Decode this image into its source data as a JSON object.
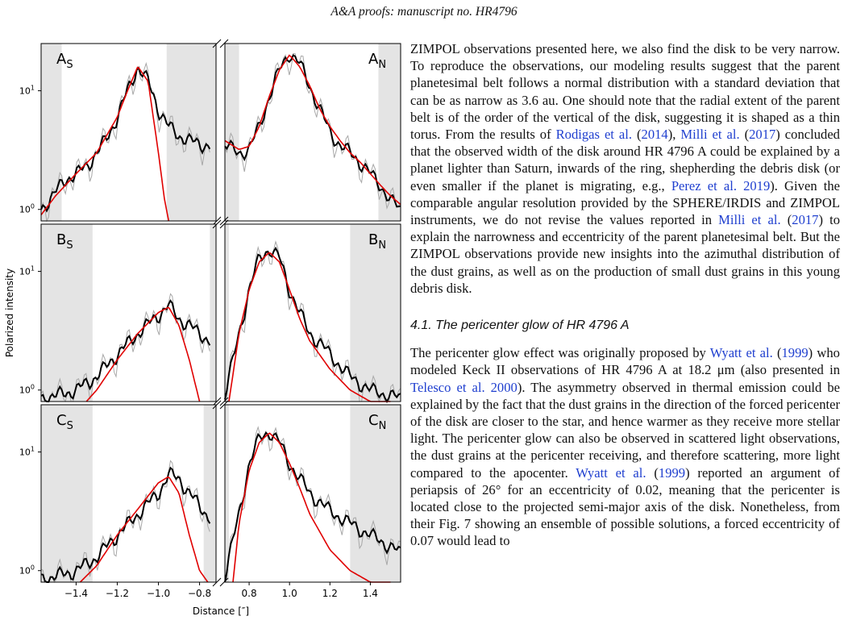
{
  "header": {
    "text": "A&A proofs: manuscript no. HR4796"
  },
  "figure": {
    "ylabel": "Polarized intensity",
    "xlabel": "Distance [″]",
    "panels": [
      {
        "left": "A",
        "left_sub": "S",
        "right": "A",
        "right_sub": "N"
      },
      {
        "left": "B",
        "left_sub": "S",
        "right": "B",
        "right_sub": "N"
      },
      {
        "left": "C",
        "left_sub": "S",
        "right": "C",
        "right_sub": "N"
      }
    ],
    "y_ticks": [
      {
        "base": "10",
        "exp": "1"
      },
      {
        "base": "10",
        "exp": "0"
      }
    ],
    "x_ticks_left": [
      "−1.4",
      "−1.2",
      "−1.0",
      "−0.8"
    ],
    "x_ticks_right": [
      "0.8",
      "1.0",
      "1.2",
      "1.4"
    ]
  },
  "chart_data": {
    "type": "line",
    "xlabel": "Distance [″]",
    "ylabel": "Polarized intensity",
    "yscale": "log",
    "ylim": [
      0.8,
      25
    ],
    "xlim_left": [
      -1.57,
      -0.72
    ],
    "xlim_right": [
      0.68,
      1.55
    ],
    "panels": [
      {
        "name": "A_S",
        "obs": {
          "x": [
            -1.57,
            -1.5,
            -1.45,
            -1.4,
            -1.35,
            -1.3,
            -1.25,
            -1.2,
            -1.15,
            -1.1,
            -1.05,
            -1.0,
            -0.95,
            -0.9,
            -0.85,
            -0.8,
            -0.75
          ],
          "y": [
            1.0,
            1.4,
            1.8,
            2.0,
            2.3,
            3.0,
            4.0,
            6.0,
            10.0,
            16.0,
            12.0,
            7.0,
            5.0,
            4.2,
            3.8,
            3.6,
            3.4
          ]
        },
        "model": {
          "x": [
            -1.57,
            -1.5,
            -1.4,
            -1.3,
            -1.2,
            -1.15,
            -1.1,
            -1.05,
            -1.0,
            -0.97,
            -0.95
          ],
          "y": [
            0.9,
            1.3,
            2.0,
            3.0,
            6.0,
            10.0,
            16.0,
            12.0,
            3.0,
            1.2,
            0.8
          ]
        }
      },
      {
        "name": "A_N",
        "obs": {
          "x": [
            0.68,
            0.75,
            0.8,
            0.85,
            0.9,
            0.95,
            1.0,
            1.05,
            1.1,
            1.15,
            1.2,
            1.25,
            1.3,
            1.35,
            1.4,
            1.45,
            1.5,
            1.55
          ],
          "y": [
            3.5,
            3.0,
            3.2,
            5.0,
            9.0,
            15.0,
            21.0,
            17.0,
            11.0,
            7.0,
            4.5,
            3.5,
            3.0,
            2.5,
            2.0,
            1.6,
            1.2,
            1.0
          ]
        },
        "model": {
          "x": [
            0.68,
            0.75,
            0.8,
            0.85,
            0.9,
            0.95,
            1.0,
            1.05,
            1.1,
            1.15,
            1.2,
            1.25,
            1.3,
            1.35,
            1.4,
            1.45,
            1.5,
            1.55
          ],
          "y": [
            3.8,
            3.2,
            3.4,
            5.0,
            9.0,
            15.0,
            20.0,
            16.0,
            11.0,
            7.0,
            5.0,
            3.8,
            3.0,
            2.5,
            2.0,
            1.6,
            1.3,
            1.1
          ]
        }
      },
      {
        "name": "B_S",
        "obs": {
          "x": [
            -1.57,
            -1.5,
            -1.4,
            -1.3,
            -1.2,
            -1.1,
            -1.0,
            -0.95,
            -0.9,
            -0.85,
            -0.8,
            -0.75
          ],
          "y": [
            0.85,
            0.9,
            1.0,
            1.3,
            2.0,
            3.0,
            4.3,
            5.2,
            4.0,
            3.5,
            3.0,
            2.6
          ]
        },
        "model": {
          "x": [
            -1.35,
            -1.3,
            -1.2,
            -1.1,
            -1.0,
            -0.95,
            -0.9,
            -0.85,
            -0.8
          ],
          "y": [
            0.8,
            1.0,
            1.8,
            3.0,
            4.5,
            5.0,
            3.5,
            1.8,
            0.8
          ]
        }
      },
      {
        "name": "B_N",
        "obs": {
          "x": [
            0.68,
            0.75,
            0.8,
            0.85,
            0.9,
            0.95,
            1.0,
            1.05,
            1.1,
            1.15,
            1.2,
            1.3,
            1.4,
            1.5,
            1.55
          ],
          "y": [
            0.9,
            3.0,
            7.0,
            13.0,
            15.5,
            13.0,
            7.0,
            4.5,
            3.0,
            2.5,
            2.0,
            1.3,
            1.0,
            0.9,
            0.85
          ]
        },
        "model": {
          "x": [
            0.7,
            0.75,
            0.8,
            0.85,
            0.9,
            0.95,
            1.0,
            1.05,
            1.1,
            1.2,
            1.3,
            1.4,
            1.5
          ],
          "y": [
            0.8,
            3.0,
            7.0,
            12.0,
            14.5,
            12.0,
            7.0,
            4.0,
            2.6,
            1.5,
            1.0,
            0.8,
            0.7
          ]
        }
      },
      {
        "name": "C_S",
        "obs": {
          "x": [
            -1.57,
            -1.5,
            -1.4,
            -1.3,
            -1.2,
            -1.1,
            -1.0,
            -0.95,
            -0.9,
            -0.85,
            -0.8,
            -0.75
          ],
          "y": [
            0.85,
            0.9,
            1.0,
            1.3,
            2.0,
            3.0,
            4.5,
            6.5,
            6.0,
            4.5,
            3.5,
            2.8
          ]
        },
        "model": {
          "x": [
            -1.38,
            -1.3,
            -1.2,
            -1.1,
            -1.0,
            -0.95,
            -0.9,
            -0.85,
            -0.8,
            -0.76
          ],
          "y": [
            0.8,
            1.1,
            2.0,
            3.3,
            5.5,
            6.2,
            4.5,
            2.0,
            1.0,
            0.8
          ]
        }
      },
      {
        "name": "C_N",
        "obs": {
          "x": [
            0.68,
            0.75,
            0.8,
            0.85,
            0.9,
            0.95,
            1.0,
            1.05,
            1.1,
            1.15,
            1.2,
            1.3,
            1.4,
            1.5,
            1.55
          ],
          "y": [
            0.9,
            3.0,
            8.0,
            13.0,
            15.0,
            12.0,
            8.0,
            6.0,
            4.5,
            3.8,
            3.2,
            2.5,
            2.0,
            1.6,
            1.4
          ]
        },
        "model": {
          "x": [
            0.72,
            0.75,
            0.8,
            0.85,
            0.9,
            0.95,
            1.0,
            1.05,
            1.1,
            1.2,
            1.3,
            1.4,
            1.5
          ],
          "y": [
            0.8,
            2.5,
            7.0,
            12.0,
            14.5,
            12.0,
            8.0,
            5.0,
            3.0,
            1.5,
            1.0,
            0.8,
            0.7
          ]
        }
      }
    ]
  },
  "text": {
    "p1": [
      {
        "t": "ZIMPOL observations presented here, we also find the disk to be very narrow. To reproduce the observations, our modeling results suggest that the parent planetesimal belt follows a normal distribution with a standard deviation that can be as narrow as 3.6 au. One should note that the radial extent of the parent belt is of the order of the vertical of the disk, suggesting it is shaped as a thin torus. From the results of "
      },
      {
        "t": "Rodigas et al.",
        "c": 1
      },
      {
        "t": " ("
      },
      {
        "t": "2014",
        "c": 1
      },
      {
        "t": "), "
      },
      {
        "t": "Milli et al.",
        "c": 1
      },
      {
        "t": " ("
      },
      {
        "t": "2017",
        "c": 1
      },
      {
        "t": ") concluded that the observed width of the disk around HR 4796 A could be explained by a planet lighter than Saturn, inwards of the ring, shepherding the debris disk (or even smaller if the planet is migrating, e.g., "
      },
      {
        "t": "Perez et al. 2019",
        "c": 1
      },
      {
        "t": "). Given the comparable angular resolution provided by the SPHERE/IRDIS and ZIMPOL instruments, we do not revise the values reported in "
      },
      {
        "t": "Milli et al.",
        "c": 1
      },
      {
        "t": " ("
      },
      {
        "t": "2017",
        "c": 1
      },
      {
        "t": ") to explain the narrowness and eccentricity of the parent planetesimal belt. But the ZIMPOL observations provide new insights into the azimuthal distribution of the dust grains, as well as on the production of small dust grains in this young debris disk."
      }
    ],
    "section": "4.1. The pericenter glow of HR 4796 A",
    "p2": [
      {
        "t": "The pericenter glow effect was originally proposed by "
      },
      {
        "t": "Wyatt et al.",
        "c": 1
      },
      {
        "t": " ("
      },
      {
        "t": "1999",
        "c": 1
      },
      {
        "t": ") who modeled Keck II observations of HR 4796 A at 18.2 μm (also presented in "
      },
      {
        "t": "Telesco et al. 2000",
        "c": 1
      },
      {
        "t": "). The asymmetry observed in thermal emission could be explained by the fact that the dust grains in the direction of the forced pericenter of the disk are closer to the star, and hence warmer as they receive more stellar light. The pericenter glow can also be observed in scattered light observations, the dust grains at the pericenter receiving, and therefore scattering, more light compared to the apocenter. "
      },
      {
        "t": "Wyatt et al.",
        "c": 1
      },
      {
        "t": " ("
      },
      {
        "t": "1999",
        "c": 1
      },
      {
        "t": ") reported an argument of periapsis of 26° for an eccentricity of 0.02, meaning that the pericenter is located close to the projected semi-major axis of the disk. Nonetheless, from their Fig. 7 showing an ensemble of possible solutions, a forced eccentricity of 0.07 would lead to"
      }
    ]
  }
}
